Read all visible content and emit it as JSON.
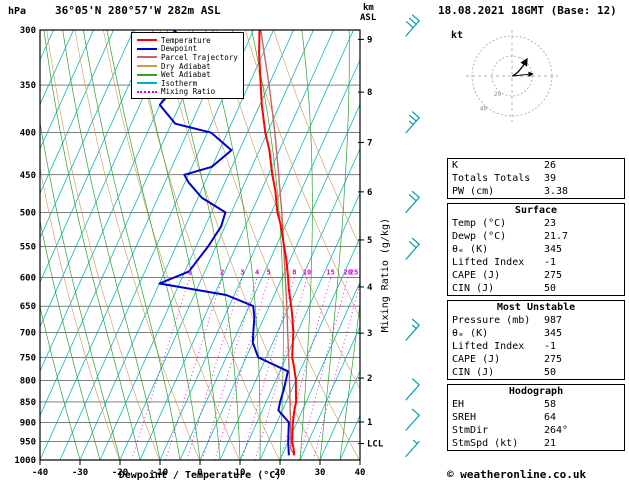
{
  "header": {
    "pressure_unit": "hPa",
    "title": "36°05'N 280°57'W 282m ASL",
    "alt_unit_top": "km",
    "alt_unit_sub": "ASL",
    "date": "18.08.2021 18GMT (Base: 12)"
  },
  "footer": {
    "axis_title": "Dewpoint / Temperature (°C)",
    "copyright": "© weatheronline.co.uk"
  },
  "legend": [
    {
      "label": "Temperature",
      "color": "#ff0000",
      "style": "solid"
    },
    {
      "label": "Dewpoint",
      "color": "#0000cd",
      "style": "solid"
    },
    {
      "label": "Parcel Trajectory",
      "color": "#c86464",
      "style": "solid"
    },
    {
      "label": "Dry Adiabat",
      "color": "#d09850",
      "style": "solid"
    },
    {
      "label": "Wet Adiabat",
      "color": "#2ea02e",
      "style": "solid"
    },
    {
      "label": "Isotherm",
      "color": "#00b4b4",
      "style": "solid"
    },
    {
      "label": "Mixing Ratio",
      "color": "#d400d4",
      "style": "dotted"
    }
  ],
  "axes": {
    "pressure_ticks": [
      300,
      350,
      400,
      450,
      500,
      550,
      600,
      650,
      700,
      750,
      800,
      850,
      900,
      950,
      1000
    ],
    "temp_ticks": [
      -40,
      -30,
      -20,
      -10,
      0,
      10,
      20,
      30,
      40
    ],
    "km_ticks": [
      {
        "label": "9",
        "p": 308
      },
      {
        "label": "8",
        "p": 357
      },
      {
        "label": "7",
        "p": 411
      },
      {
        "label": "6",
        "p": 472
      },
      {
        "label": "5",
        "p": 540
      },
      {
        "label": "4",
        "p": 616
      },
      {
        "label": "3",
        "p": 701
      },
      {
        "label": "2",
        "p": 795
      },
      {
        "label": "1",
        "p": 899
      },
      {
        "label": "LCL",
        "p": 955
      }
    ],
    "mixing_axis_label": "Mixing Ratio (g/kg)",
    "mixing_values": [
      1,
      2,
      3,
      4,
      5,
      8,
      10,
      15,
      20,
      25
    ]
  },
  "wind": {
    "unit": "kt",
    "levels": [
      {
        "p": 305,
        "kt": 30
      },
      {
        "p": 400,
        "kt": 25
      },
      {
        "p": 500,
        "kt": 20
      },
      {
        "p": 570,
        "kt": 20
      },
      {
        "p": 715,
        "kt": 15
      },
      {
        "p": 845,
        "kt": 10
      },
      {
        "p": 920,
        "kt": 10
      },
      {
        "p": 990,
        "kt": 5
      }
    ]
  },
  "hodograph": {
    "unit_label": "kt",
    "rings_kt": [
      20,
      40
    ],
    "ring_labels": [
      "20",
      "40"
    ],
    "trace_uv": [
      [
        1,
        0
      ],
      [
        6,
        4
      ],
      [
        11,
        10
      ],
      [
        15,
        17
      ]
    ],
    "storm_vector_uv": [
      20.9,
      2.2
    ]
  },
  "tables": {
    "general": {
      "rows": [
        [
          "K",
          "26"
        ],
        [
          "Totals Totals",
          "39"
        ],
        [
          "PW (cm)",
          "3.38"
        ]
      ]
    },
    "surface": {
      "title": "Surface",
      "rows": [
        [
          "Temp (°C)",
          "23"
        ],
        [
          "Dewp (°C)",
          "21.7"
        ],
        [
          "θₑ (K)",
          "345"
        ],
        [
          "Lifted Index",
          "-1"
        ],
        [
          "CAPE (J)",
          "275"
        ],
        [
          "CIN (J)",
          "50"
        ]
      ]
    },
    "most_unstable": {
      "title": "Most Unstable",
      "rows": [
        [
          "Pressure (mb)",
          "987"
        ],
        [
          "θₑ (K)",
          "345"
        ],
        [
          "Lifted Index",
          "-1"
        ],
        [
          "CAPE (J)",
          "275"
        ],
        [
          "CIN (J)",
          "50"
        ]
      ]
    },
    "hodograph": {
      "title": "Hodograph",
      "rows": [
        [
          "EH",
          "58"
        ],
        [
          "SREH",
          "64"
        ],
        [
          "StmDir",
          "264°"
        ],
        [
          "StmSpd (kt)",
          "21"
        ]
      ]
    }
  },
  "chart_data": {
    "type": "line",
    "subtype": "skew-t-log-p-sounding",
    "title": "36°05'N 280°57'W 282m ASL",
    "x_label": "Dewpoint / Temperature (°C)",
    "x_range": [
      -40,
      40
    ],
    "y_label": "hPa",
    "y_scale": "log",
    "y_levels": [
      300,
      350,
      400,
      450,
      500,
      550,
      600,
      650,
      700,
      750,
      800,
      850,
      900,
      950,
      1000
    ],
    "series": [
      {
        "name": "Parcel Trajectory",
        "width": 1.4,
        "points": [
          [
            987,
            23
          ],
          [
            968,
            21.4
          ],
          [
            950,
            20.7
          ],
          [
            900,
            18.4
          ],
          [
            850,
            16
          ],
          [
            800,
            13.4
          ],
          [
            750,
            10.6
          ],
          [
            700,
            7.6
          ],
          [
            650,
            4.4
          ],
          [
            600,
            0.8
          ],
          [
            550,
            -3.1
          ],
          [
            500,
            -7.4
          ],
          [
            450,
            -12.4
          ],
          [
            400,
            -18.1
          ],
          [
            350,
            -24.9
          ],
          [
            300,
            -33.2
          ]
        ]
      },
      {
        "name": "Temperature",
        "width": 2,
        "points": [
          [
            987,
            23
          ],
          [
            970,
            22.2
          ],
          [
            950,
            21
          ],
          [
            925,
            20
          ],
          [
            900,
            19
          ],
          [
            870,
            18
          ],
          [
            850,
            17.5
          ],
          [
            820,
            16
          ],
          [
            800,
            15
          ],
          [
            770,
            13
          ],
          [
            750,
            11.5
          ],
          [
            720,
            10
          ],
          [
            700,
            9
          ],
          [
            670,
            7
          ],
          [
            650,
            5.5
          ],
          [
            620,
            3
          ],
          [
            600,
            1.5
          ],
          [
            570,
            -1
          ],
          [
            550,
            -3
          ],
          [
            520,
            -6
          ],
          [
            500,
            -8.5
          ],
          [
            470,
            -11.5
          ],
          [
            450,
            -14
          ],
          [
            420,
            -17.5
          ],
          [
            400,
            -20.5
          ],
          [
            370,
            -24.5
          ],
          [
            350,
            -27
          ],
          [
            320,
            -31
          ],
          [
            300,
            -33.5
          ]
        ]
      },
      {
        "name": "Dewpoint",
        "width": 2,
        "points": [
          [
            987,
            21.7
          ],
          [
            950,
            20
          ],
          [
            925,
            19
          ],
          [
            900,
            18
          ],
          [
            870,
            14
          ],
          [
            850,
            13.5
          ],
          [
            820,
            13
          ],
          [
            800,
            12.5
          ],
          [
            780,
            12
          ],
          [
            760,
            6
          ],
          [
            750,
            3
          ],
          [
            720,
            0
          ],
          [
            700,
            -1
          ],
          [
            670,
            -2.5
          ],
          [
            650,
            -4
          ],
          [
            630,
            -12
          ],
          [
            610,
            -30
          ],
          [
            590,
            -24
          ],
          [
            570,
            -23
          ],
          [
            550,
            -22
          ],
          [
            520,
            -21
          ],
          [
            500,
            -21.5
          ],
          [
            480,
            -29
          ],
          [
            460,
            -34
          ],
          [
            450,
            -36
          ],
          [
            440,
            -30
          ],
          [
            420,
            -27
          ],
          [
            400,
            -34
          ],
          [
            390,
            -44
          ],
          [
            370,
            -50
          ],
          [
            350,
            -48
          ],
          [
            340,
            -40
          ],
          [
            320,
            -46
          ],
          [
            300,
            -55
          ]
        ]
      }
    ]
  }
}
